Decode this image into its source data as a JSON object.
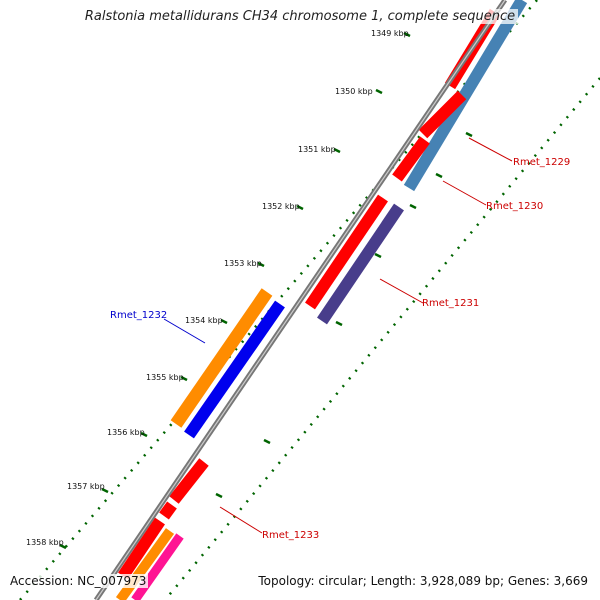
{
  "header": {
    "title": "Ralstonia metallidurans CH34 chromosome 1, complete sequence"
  },
  "footer": {
    "accession": "Accession: NC_007973",
    "summary": "Topology: circular; Length: 3,928,089 bp; Genes: 3,669"
  },
  "ruler": {
    "labels": [
      "1349 kbp",
      "1350 kbp",
      "1351 kbp",
      "1352 kbp",
      "1353 kbp",
      "1354 kbp",
      "1355 kbp",
      "1356 kbp",
      "1357 kbp",
      "1358 kbp"
    ]
  },
  "gene_labels": {
    "rmet_1229": "Rmet_1229",
    "rmet_1230": "Rmet_1230",
    "rmet_1231": "Rmet_1231",
    "rmet_1232": "Rmet_1232",
    "rmet_1233": "Rmet_1233"
  },
  "colors": {
    "cds_forward": "#ff0000",
    "cds_reverse": "#ff0000",
    "blue_track": "#0000ee",
    "steel_blue_track": "#4682b4",
    "purple_track": "#483d8b",
    "orange_track": "#ff8c00",
    "pink_track": "#ff1493",
    "backbone": "#666666",
    "ruler": "#006400",
    "label_forward": "#cc0000",
    "label_reverse": "#0000cc"
  }
}
